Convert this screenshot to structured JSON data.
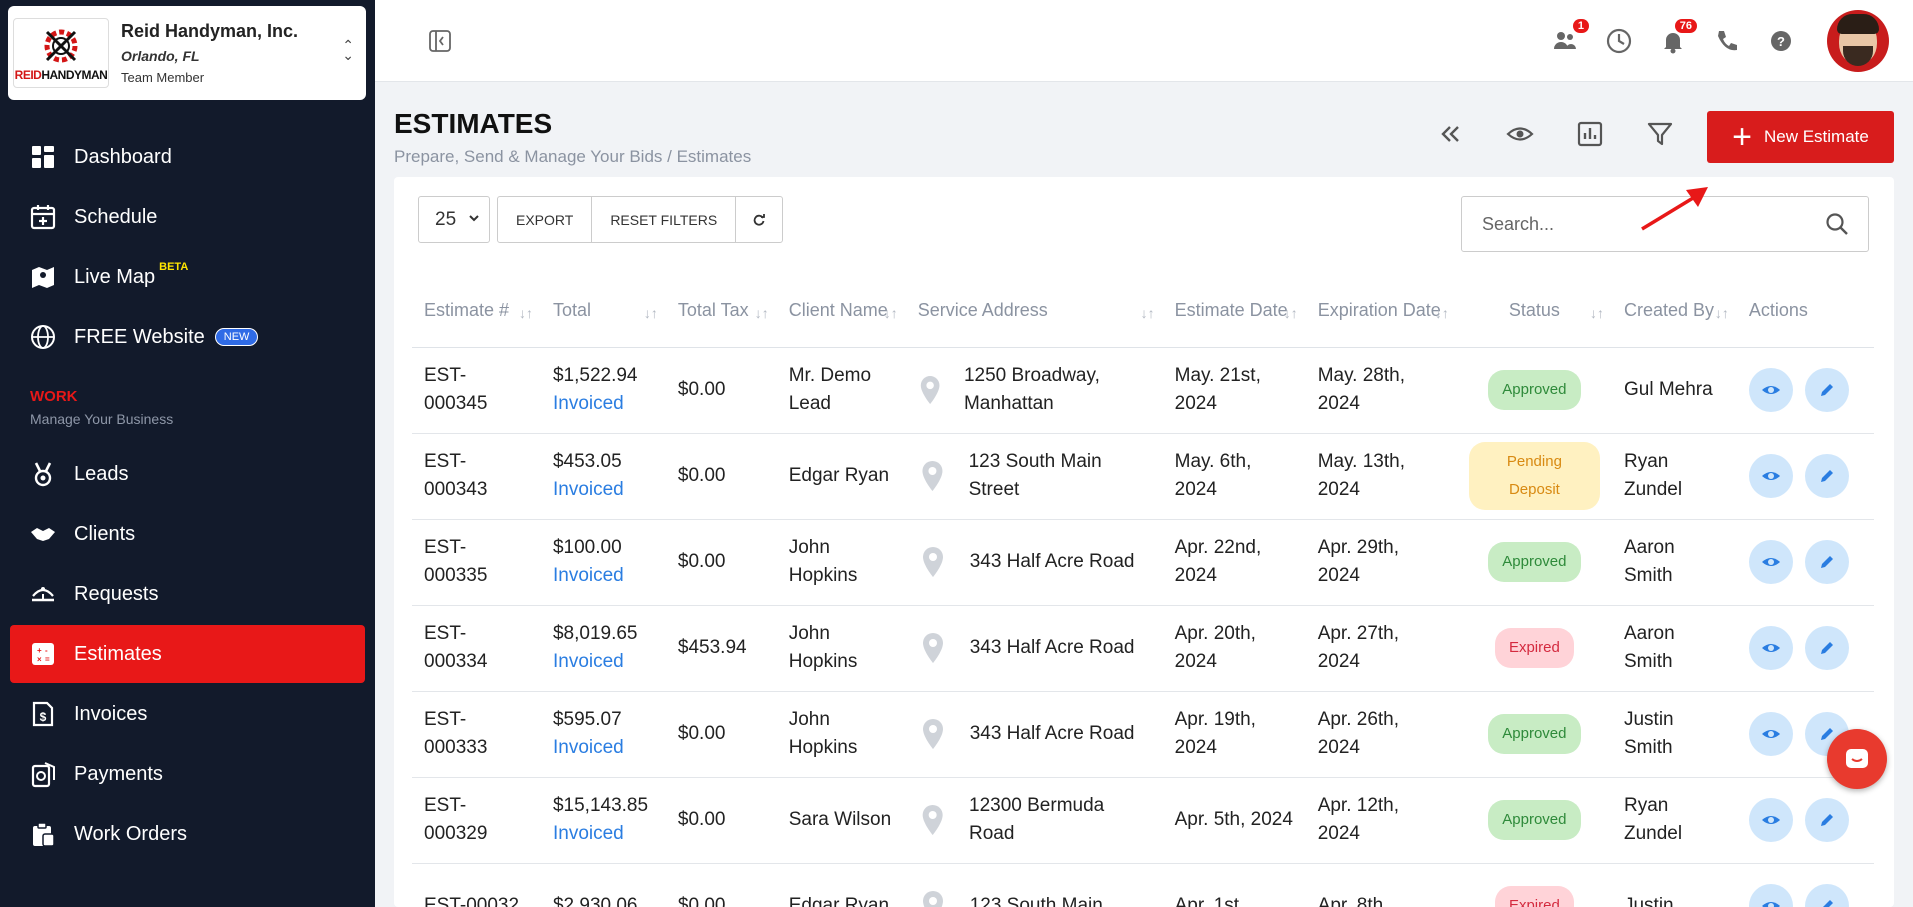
{
  "company": {
    "name": "Reid Handyman, Inc.",
    "city": "Orlando, FL",
    "role": "Team Member",
    "logo_text_red": "REID",
    "logo_text_black": "HANDYMAN"
  },
  "sidebar": {
    "items": [
      {
        "label": "Dashboard",
        "icon": "dashboard-icon"
      },
      {
        "label": "Schedule",
        "icon": "calendar-plus-icon"
      },
      {
        "label": "Live Map",
        "icon": "map-icon",
        "tag": "BETA"
      },
      {
        "label": "FREE Website",
        "icon": "globe-icon",
        "tag": "NEW"
      },
      {
        "label": "Leads",
        "icon": "leads-icon"
      },
      {
        "label": "Clients",
        "icon": "handshake-icon"
      },
      {
        "label": "Requests",
        "icon": "requests-icon"
      },
      {
        "label": "Estimates",
        "icon": "calculator-icon",
        "active": true
      },
      {
        "label": "Invoices",
        "icon": "invoice-icon"
      },
      {
        "label": "Payments",
        "icon": "payments-icon"
      },
      {
        "label": "Work Orders",
        "icon": "work-orders-icon"
      }
    ],
    "section_title": "WORK",
    "section_sub": "Manage Your Business"
  },
  "topbar": {
    "badges": {
      "team": "1",
      "notifications": "76"
    }
  },
  "page": {
    "title": "ESTIMATES",
    "subtitle": "Prepare, Send & Manage Your Bids / Estimates",
    "new_button": "New Estimate"
  },
  "controls": {
    "per_page": "25",
    "export": "EXPORT",
    "reset": "RESET FILTERS",
    "search_placeholder": "Search..."
  },
  "table": {
    "headers": [
      "Estimate #",
      "Total",
      "Total Tax",
      "Client Name",
      "Service Address",
      "Estimate Date",
      "Expiration Date",
      "Status",
      "Created By",
      "Actions"
    ],
    "rows": [
      {
        "num": "EST-000345",
        "total": "$1,522.94",
        "invoiced": "Invoiced",
        "tax": "$0.00",
        "client": "Mr. Demo Lead",
        "addr": "1250 Broadway, Manhattan",
        "edate": "May. 21st, 2024",
        "xdate": "May. 28th, 2024",
        "status": "Approved",
        "by": "Gul Mehra"
      },
      {
        "num": "EST-000343",
        "total": "$453.05",
        "invoiced": "Invoiced",
        "tax": "$0.00",
        "client": "Edgar Ryan",
        "addr": "123 South Main Street",
        "edate": "May. 6th, 2024",
        "xdate": "May. 13th, 2024",
        "status": "Pending Deposit",
        "by": "Ryan Zundel"
      },
      {
        "num": "EST-000335",
        "total": "$100.00",
        "invoiced": "Invoiced",
        "tax": "$0.00",
        "client": "John Hopkins",
        "addr": "343 Half Acre Road",
        "edate": "Apr. 22nd, 2024",
        "xdate": "Apr. 29th, 2024",
        "status": "Approved",
        "by": "Aaron Smith"
      },
      {
        "num": "EST-000334",
        "total": "$8,019.65",
        "invoiced": "Invoiced",
        "tax": "$453.94",
        "client": "John Hopkins",
        "addr": "343 Half Acre Road",
        "edate": "Apr. 20th, 2024",
        "xdate": "Apr. 27th, 2024",
        "status": "Expired",
        "by": "Aaron Smith"
      },
      {
        "num": "EST-000333",
        "total": "$595.07",
        "invoiced": "Invoiced",
        "tax": "$0.00",
        "client": "John Hopkins",
        "addr": "343 Half Acre Road",
        "edate": "Apr. 19th, 2024",
        "xdate": "Apr. 26th, 2024",
        "status": "Approved",
        "by": "Justin Smith"
      },
      {
        "num": "EST-000329",
        "total": "$15,143.85",
        "invoiced": "Invoiced",
        "tax": "$0.00",
        "client": "Sara Wilson",
        "addr": "12300 Bermuda Road",
        "edate": "Apr. 5th, 2024",
        "xdate": "Apr. 12th, 2024",
        "status": "Approved",
        "by": "Ryan Zundel"
      },
      {
        "num": "EST-00032",
        "total": "$2,930.06",
        "invoiced": "",
        "tax": "$0.00",
        "client": "Edgar Ryan",
        "addr": "123 South Main",
        "edate": "Apr. 1st,",
        "xdate": "Apr. 8th,",
        "status": "Expired",
        "by": "Justin"
      }
    ]
  },
  "colors": {
    "brand_red": "#e81818",
    "sidebar_bg": "#121a2b",
    "link_blue": "#2a7de1"
  }
}
